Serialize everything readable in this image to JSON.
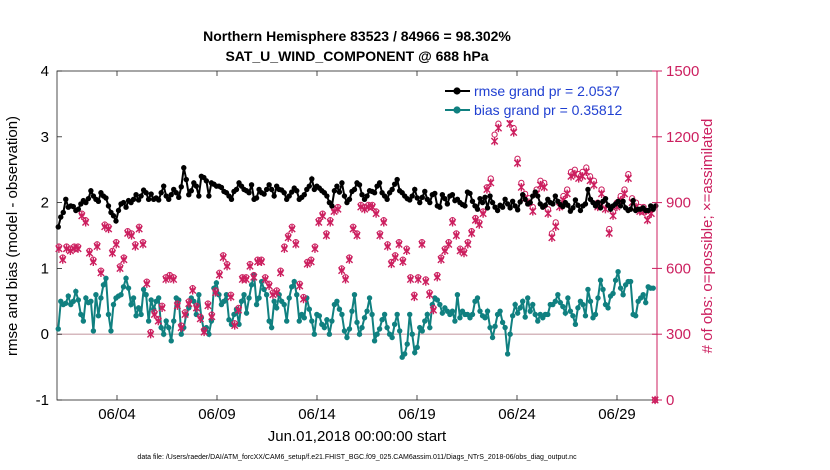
{
  "chart_data": {
    "type": "line",
    "title_line1": "Northern Hemisphere 83523 / 84966 = 98.302%",
    "title_line2": "SAT_U_WIND_COMPONENT @ 688 hPa",
    "xlabel": "Jun.01,2018 00:00:00 start",
    "ylabel_left": "rmse and bias (model - observation)",
    "ylabel_right": "# of obs: o=possible; ×=assimilated",
    "footnote": "data file: /Users/raeder/DAI/ATM_forcXX/CAM6_setup/f.e21.FHIST_BGC.f09_025.CAM6assim.011/Diags_NTrS_2018-06/obs_diag_output.nc",
    "ylim_left": [
      -1,
      4
    ],
    "ylim_right": [
      0,
      1500
    ],
    "xlim_days": [
      0.5,
      30.5
    ],
    "x_ticks": [
      {
        "day": 3.5,
        "label": "06/04"
      },
      {
        "day": 8.5,
        "label": "06/09"
      },
      {
        "day": 13.5,
        "label": "06/14"
      },
      {
        "day": 18.5,
        "label": "06/19"
      },
      {
        "day": 23.5,
        "label": "06/24"
      },
      {
        "day": 28.5,
        "label": "06/29"
      }
    ],
    "y_ticks_left": [
      "-1",
      "0",
      "1",
      "2",
      "3",
      "4"
    ],
    "y_ticks_right": [
      "0",
      "300",
      "600",
      "900",
      "1200",
      "1500"
    ],
    "legend": [
      {
        "label": "rmse grand pr = 2.0537",
        "color": "#000000"
      },
      {
        "label": "bias grand pr = 0.35812",
        "color": "#108080"
      }
    ],
    "colors": {
      "rmse": "#000000",
      "bias": "#108080",
      "obs": "#cc1f5f",
      "zero_line": "#c8a0a8"
    },
    "rmse": [
      1.63,
      1.78,
      1.85,
      2.05,
      1.93,
      1.95,
      1.94,
      1.88,
      1.9,
      1.98,
      2.03,
      2.0,
      2.06,
      2.18,
      2.1,
      2.05,
      2.02,
      2.15,
      2.1,
      2.07,
      1.95,
      1.85,
      1.8,
      1.72,
      1.88,
      1.98,
      2.0,
      1.93,
      2.03,
      2.0,
      2.05,
      2.12,
      2.04,
      2.1,
      2.19,
      2.15,
      2.05,
      2.13,
      2.05,
      2.07,
      2.04,
      2.15,
      2.25,
      2.1,
      2.05,
      2.12,
      2.2,
      2.15,
      2.08,
      2.24,
      2.53,
      2.35,
      2.12,
      2.18,
      2.3,
      2.25,
      2.1,
      2.4,
      2.38,
      2.33,
      2.1,
      2.3,
      2.28,
      2.25,
      2.25,
      2.23,
      2.17,
      2.15,
      2.1,
      2.05,
      2.17,
      2.2,
      2.3,
      2.25,
      2.2,
      2.18,
      2.15,
      2.27,
      2.05,
      2.07,
      2.2,
      2.15,
      2.13,
      2.2,
      2.27,
      2.2,
      2.1,
      2.25,
      2.2,
      2.19,
      2.15,
      2.05,
      2.1,
      2.16,
      2.22,
      2.18,
      2.05,
      2.08,
      2.12,
      2.2,
      2.25,
      2.36,
      2.2,
      2.25,
      2.22,
      2.18,
      2.15,
      2.1,
      2.0,
      1.95,
      2.18,
      2.25,
      2.16,
      2.3,
      2.1,
      2.0,
      2.05,
      2.17,
      2.2,
      2.3,
      2.27,
      2.12,
      2.05,
      2.1,
      2.18,
      2.17,
      2.15,
      2.25,
      2.3,
      2.15,
      2.1,
      2.05,
      2.15,
      2.2,
      2.28,
      2.35,
      2.18,
      2.15,
      2.1,
      2.06,
      2.04,
      2.1,
      2.2,
      2.07,
      2.0,
      2.08,
      2.17,
      2.05,
      2.0,
      2.12,
      2.14,
      1.95,
      1.93,
      2.12,
      2.06,
      1.98,
      2.1,
      2.12,
      2.03,
      2.05,
      2.0,
      1.97,
      1.95,
      2.16,
      2.14,
      2.02,
      1.95,
      1.9,
      2.06,
      2.0,
      2.08,
      1.92,
      2.1,
      2.0,
      1.93,
      1.88,
      1.96,
      1.93,
      2.05,
      1.98,
      1.92,
      2.02,
      1.95,
      1.89,
      2.01,
      2.12,
      2.05,
      1.98,
      2.0,
      2.1,
      2.16,
      2.1,
      1.98,
      1.93,
      1.96,
      2.05,
      2.0,
      1.98,
      2.1,
      2.02,
      1.97,
      1.94,
      2.0,
      1.96,
      1.87,
      1.92,
      2.04,
      1.96,
      1.88,
      1.95,
      1.98,
      2.2,
      2.05,
      2.0,
      1.95,
      2.0,
      1.92,
      2.02,
      2.06,
      1.96,
      1.9,
      1.95,
      1.98,
      2.02,
      1.95,
      2.02,
      1.92,
      1.88,
      1.9,
      2.03,
      1.88,
      1.9,
      1.9,
      1.92,
      1.88,
      1.88,
      1.95,
      1.9,
      1.95
    ],
    "bias": [
      0.08,
      0.5,
      0.45,
      0.47,
      0.58,
      0.45,
      0.5,
      0.65,
      0.52,
      0.3,
      0.2,
      0.55,
      0.48,
      0.5,
      0.05,
      0.6,
      0.28,
      0.55,
      0.75,
      0.85,
      0.3,
      0.05,
      0.45,
      0.55,
      0.58,
      0.6,
      0.72,
      0.85,
      0.7,
      0.45,
      0.55,
      0.28,
      0.4,
      0.3,
      0.68,
      0.6,
      0.2,
      0.52,
      0.38,
      0.5,
      0.55,
      0.1,
      0.0,
      0.2,
      0.1,
      -0.1,
      0.2,
      0.55,
      0.52,
      0.0,
      0.1,
      0.3,
      0.4,
      0.55,
      0.5,
      0.3,
      0.6,
      0.25,
      0.06,
      0.1,
      0.0,
      0.2,
      0.7,
      0.78,
      0.6,
      0.45,
      0.5,
      0.6,
      0.22,
      0.15,
      0.3,
      0.38,
      0.15,
      0.5,
      0.6,
      0.32,
      0.55,
      0.75,
      0.9,
      0.45,
      0.55,
      0.8,
      0.68,
      0.6,
      0.2,
      0.1,
      0.5,
      0.4,
      0.6,
      0.5,
      0.45,
      0.2,
      0.55,
      0.72,
      0.8,
      0.6,
      0.2,
      0.3,
      0.25,
      0.55,
      0.38,
      0.2,
      0.0,
      0.3,
      0.28,
      0.15,
      0.1,
      0.22,
      0.0,
      0.2,
      0.45,
      0.5,
      0.38,
      0.3,
      0.05,
      -0.05,
      0.08,
      0.35,
      0.6,
      0.18,
      0.0,
      0.1,
      0.25,
      0.35,
      0.55,
      0.3,
      -0.1,
      0.0,
      0.08,
      0.22,
      0.3,
      0.1,
      0.0,
      -0.05,
      0.15,
      0.3,
      0.05,
      -0.35,
      -0.3,
      -0.15,
      0.3,
      0.0,
      -0.28,
      -0.2,
      0.1,
      0.05,
      0.2,
      0.3,
      0.1,
      0.45,
      0.55,
      0.52,
      0.45,
      0.32,
      0.4,
      0.35,
      0.3,
      0.35,
      0.2,
      0.6,
      0.25,
      0.35,
      0.3,
      0.3,
      0.25,
      0.3,
      0.5,
      0.55,
      0.35,
      0.28,
      0.25,
      0.35,
      0.1,
      -0.05,
      0.12,
      0.3,
      0.35,
      0.18,
      0.1,
      -0.3,
      0.0,
      0.28,
      0.45,
      0.32,
      0.4,
      0.5,
      0.26,
      0.55,
      0.35,
      0.45,
      0.3,
      0.2,
      0.3,
      0.25,
      0.3,
      0.3,
      0.45,
      0.45,
      0.5,
      0.6,
      0.48,
      0.42,
      0.32,
      0.55,
      0.35,
      0.28,
      0.15,
      0.4,
      0.5,
      0.45,
      0.28,
      0.68,
      0.5,
      0.25,
      0.3,
      0.55,
      0.82,
      0.68,
      0.45,
      0.4,
      0.58,
      0.62,
      0.82,
      0.95,
      0.7,
      0.6,
      0.75,
      0.8,
      0.8,
      0.3,
      0.28,
      0.5,
      0.55,
      0.6,
      0.48,
      0.72,
      0.7,
      0.7
    ],
    "obs_possible": [
      700,
      650,
      700,
      690,
      700,
      700,
      850,
      820,
      680,
      640,
      710,
      590,
      800,
      790,
      680,
      720,
      610,
      650,
      770,
      760,
      710,
      790,
      720,
      540,
      310,
      400,
      370,
      430,
      560,
      570,
      560,
      440,
      340,
      400,
      450,
      510,
      430,
      380,
      320,
      440,
      390,
      500,
      580,
      660,
      620,
      480,
      350,
      420,
      560,
      560,
      620,
      570,
      640,
      640,
      560,
      530,
      490,
      500,
      590,
      700,
      750,
      790,
      720,
      530,
      470,
      630,
      640,
      700,
      820,
      850,
      760,
      820,
      870,
      880,
      600,
      560,
      650,
      790,
      760,
      890,
      880,
      890,
      890,
      860,
      760,
      820,
      710,
      630,
      660,
      720,
      640,
      690,
      560,
      480,
      560,
      720,
      550,
      490,
      420,
      570,
      650,
      690,
      720,
      820,
      760,
      690,
      680,
      720,
      770,
      830,
      810,
      860,
      970,
      1010,
      1210,
      1260,
      1380,
      1350,
      1280,
      1240,
      1100,
      990,
      940,
      920,
      880,
      960,
      1000,
      990,
      870,
      760,
      810,
      900,
      930,
      960,
      1040,
      1050,
      1030,
      1040,
      1060,
      1020,
      1000,
      900,
      960,
      890,
      780,
      860,
      900,
      930,
      960,
      1030,
      920,
      900,
      880,
      880,
      840,
      870,
      0
    ],
    "obs_assimilated": [
      690,
      640,
      690,
      680,
      690,
      690,
      840,
      810,
      670,
      630,
      700,
      580,
      790,
      780,
      670,
      710,
      600,
      640,
      760,
      750,
      700,
      780,
      710,
      530,
      300,
      390,
      360,
      420,
      550,
      560,
      550,
      430,
      330,
      390,
      440,
      500,
      420,
      370,
      310,
      430,
      380,
      490,
      570,
      650,
      610,
      470,
      340,
      410,
      550,
      550,
      610,
      560,
      630,
      630,
      550,
      520,
      480,
      490,
      580,
      690,
      740,
      780,
      710,
      520,
      460,
      620,
      630,
      690,
      810,
      840,
      750,
      810,
      860,
      870,
      590,
      550,
      640,
      780,
      750,
      880,
      870,
      880,
      880,
      850,
      750,
      810,
      700,
      620,
      650,
      710,
      630,
      680,
      550,
      470,
      550,
      710,
      540,
      480,
      410,
      560,
      640,
      680,
      710,
      810,
      750,
      680,
      670,
      710,
      760,
      820,
      800,
      850,
      960,
      990,
      1180,
      1240,
      1360,
      1330,
      1260,
      1220,
      1080,
      970,
      920,
      900,
      860,
      940,
      980,
      970,
      850,
      740,
      790,
      880,
      910,
      940,
      1020,
      1030,
      1010,
      1020,
      1040,
      1000,
      980,
      880,
      940,
      870,
      760,
      840,
      880,
      910,
      940,
      1010,
      900,
      880,
      860,
      860,
      820,
      850,
      0
    ]
  }
}
